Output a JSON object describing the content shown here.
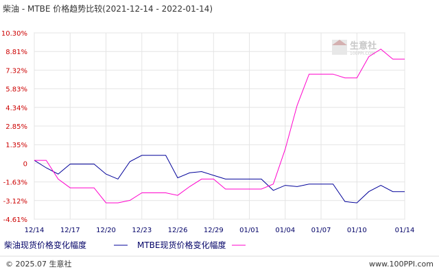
{
  "chart_data": {
    "type": "line",
    "title": "柴油 - MTBE 价格趋势比较(2021-12-14 - 2022-01-14)",
    "y_ticks": [
      "10.30%",
      "8.81%",
      "7.32%",
      "5.83%",
      "4.34%",
      "2.85%",
      "1.35%",
      "0",
      "-1.63%",
      "-3.12%",
      "-4.61%"
    ],
    "ylim": [
      -4.61,
      10.3
    ],
    "x_ticks": [
      "12/14",
      "12/17",
      "12/20",
      "12/23",
      "12/26",
      "12/29",
      "01/01",
      "01/04",
      "01/07",
      "01/10",
      "01/14"
    ],
    "x": [
      "12/14",
      "12/15",
      "12/16",
      "12/17",
      "12/18",
      "12/19",
      "12/20",
      "12/21",
      "12/22",
      "12/23",
      "12/24",
      "12/25",
      "12/26",
      "12/27",
      "12/28",
      "12/29",
      "12/30",
      "12/31",
      "01/01",
      "01/02",
      "01/03",
      "01/04",
      "01/05",
      "01/06",
      "01/07",
      "01/08",
      "01/09",
      "01/10",
      "01/11",
      "01/12",
      "01/13",
      "01/14"
    ],
    "series": [
      {
        "name": "柴油现货价格变化幅度",
        "color": "#000099",
        "values": [
          0.1,
          -0.5,
          -1.0,
          -0.2,
          -0.2,
          -0.2,
          -1.0,
          -1.4,
          0.0,
          0.5,
          0.5,
          0.5,
          -1.3,
          -0.9,
          -0.8,
          -1.1,
          -1.4,
          -1.4,
          -1.4,
          -1.4,
          -2.3,
          -1.9,
          -2.0,
          -1.8,
          -1.8,
          -1.8,
          -3.2,
          -3.3,
          -2.4,
          -1.9,
          -2.4,
          -2.4
        ]
      },
      {
        "name": "MTBE现货价格变化幅度",
        "color": "#ff00cc",
        "values": [
          0.1,
          0.1,
          -1.4,
          -2.1,
          -2.1,
          -2.1,
          -3.3,
          -3.3,
          -3.1,
          -2.5,
          -2.5,
          -2.5,
          -2.7,
          -2.0,
          -1.4,
          -1.4,
          -2.2,
          -2.2,
          -2.2,
          -2.2,
          -1.8,
          1.0,
          4.5,
          7.0,
          7.0,
          7.0,
          6.7,
          6.7,
          8.4,
          9.0,
          8.2,
          8.2
        ]
      }
    ],
    "grid": true
  },
  "watermark": {
    "brand": "生意社",
    "sub": "100PPI.COM"
  },
  "footer": {
    "copyright": "© 2025.07 生意社",
    "site": "www.100PPI.com"
  }
}
